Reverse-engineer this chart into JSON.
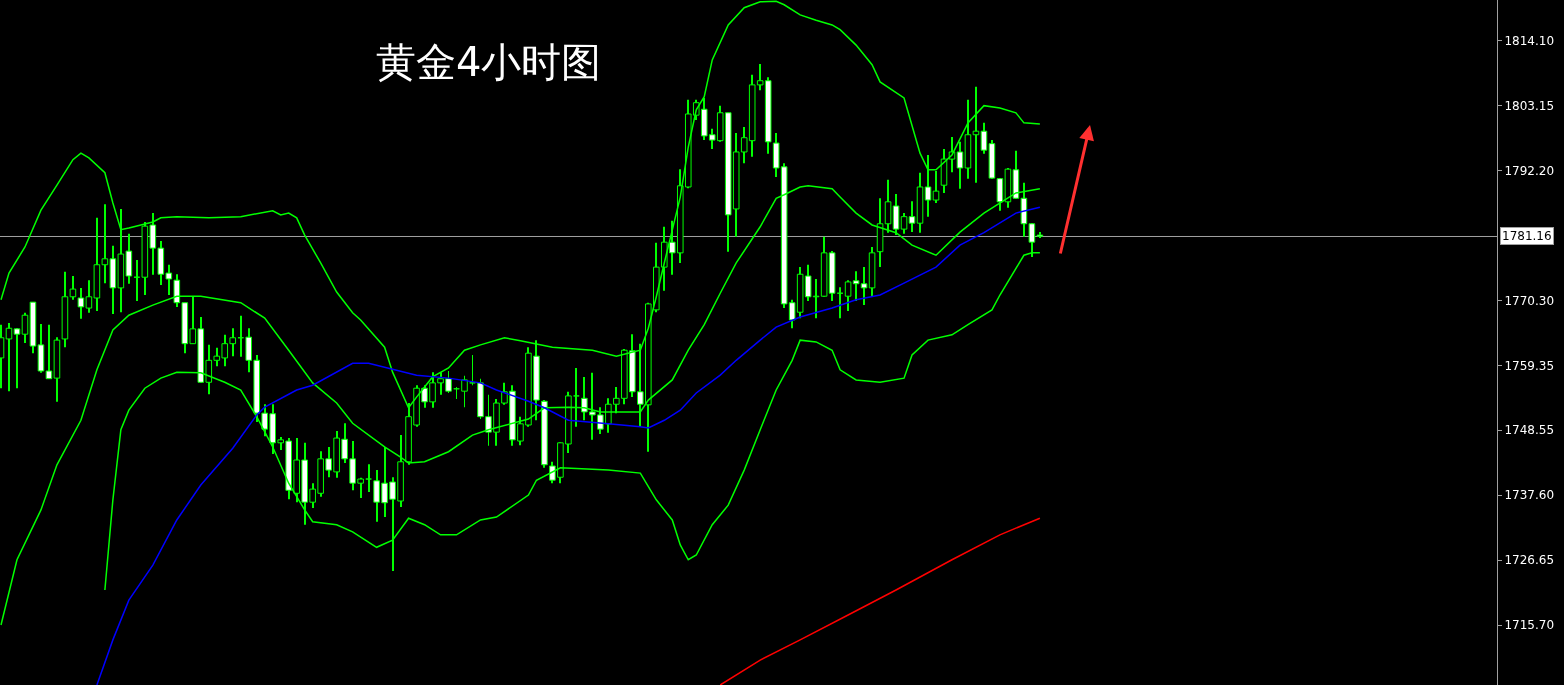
{
  "chart_data": {
    "type": "candlestick",
    "title": "黄金4小时图",
    "categories": [
      null,
      null,
      null,
      null,
      null,
      null,
      null,
      null,
      null,
      null,
      null,
      null,
      null,
      null,
      null,
      null,
      null,
      null,
      null,
      null,
      null,
      null,
      null,
      null,
      null,
      null,
      null,
      null,
      null,
      null,
      null,
      null,
      null,
      null,
      null,
      null,
      null,
      null,
      null,
      null,
      null,
      null,
      null,
      null,
      null,
      null,
      null,
      null,
      null,
      null,
      null,
      null,
      null,
      null,
      null,
      null,
      null,
      null,
      null,
      null,
      null,
      null,
      null,
      null,
      null,
      null,
      null,
      null,
      null,
      null,
      null,
      null,
      null,
      null,
      null,
      null,
      null,
      null,
      null,
      null,
      null,
      null,
      null,
      null,
      null,
      null,
      null,
      null,
      null,
      null,
      null,
      null,
      null,
      null,
      null,
      null,
      null,
      null,
      null,
      null,
      null,
      null,
      null,
      null,
      null,
      null,
      null,
      null,
      null,
      null,
      null,
      null,
      null,
      null,
      null,
      null,
      null,
      null,
      null,
      null,
      null,
      null,
      null,
      null,
      null,
      null,
      null,
      null,
      null,
      null,
      null
    ],
    "color": "#00ff00",
    "ohlc": [
      [
        1760.7,
        1766.3,
        1755.6,
        1764.1
      ],
      [
        1763.9,
        1766.6,
        1755.1,
        1765.7
      ],
      [
        1765.6,
        1765.7,
        1755.6,
        1764.7
      ],
      [
        1764.7,
        1768.3,
        1763.2,
        1767.9
      ],
      [
        1770.1,
        1770.1,
        1761.5,
        1762.7
      ],
      [
        1762.9,
        1766.4,
        1758.2,
        1758.5
      ],
      [
        1758.5,
        1766.3,
        1757.2,
        1757.2
      ],
      [
        1757.3,
        1764.2,
        1753.3,
        1763.7
      ],
      [
        1763.9,
        1775.2,
        1762.5,
        1771.0
      ],
      [
        1771.0,
        1774.5,
        1770.5,
        1772.3
      ],
      [
        1770.8,
        1772.5,
        1767.3,
        1769.3
      ],
      [
        1769.1,
        1773.8,
        1768.3,
        1771.0
      ],
      [
        1770.8,
        1784.3,
        1768.6,
        1776.4
      ],
      [
        1776.4,
        1786.6,
        1773.3,
        1777.4
      ],
      [
        1777.4,
        1779.6,
        1768.1,
        1772.5
      ],
      [
        1772.5,
        1785.8,
        1768.4,
        1778.2
      ],
      [
        1778.7,
        1781.6,
        1773.2,
        1774.5
      ],
      [
        1774.3,
        1777.2,
        1770.3,
        1774.3
      ],
      [
        1774.3,
        1783.6,
        1771.3,
        1782.9
      ],
      [
        1783.1,
        1785.1,
        1774.7,
        1779.2
      ],
      [
        1779.2,
        1780.4,
        1773.0,
        1774.8
      ],
      [
        1775.0,
        1776.4,
        1771.3,
        1774.0
      ],
      [
        1773.8,
        1774.8,
        1769.3,
        1770.0
      ],
      [
        1770.0,
        1770.0,
        1761.5,
        1763.1
      ],
      [
        1763.1,
        1771.0,
        1763.1,
        1765.6
      ],
      [
        1765.6,
        1767.6,
        1756.5,
        1756.6
      ],
      [
        1756.6,
        1762.9,
        1754.6,
        1760.3
      ],
      [
        1760.3,
        1762.4,
        1759.3,
        1761.0
      ],
      [
        1760.7,
        1764.6,
        1759.3,
        1763.1
      ],
      [
        1763.1,
        1765.7,
        1761.0,
        1764.1
      ],
      [
        1764.1,
        1767.8,
        1760.9,
        1764.1
      ],
      [
        1764.2,
        1765.7,
        1758.3,
        1760.3
      ],
      [
        1760.3,
        1761.2,
        1749.9,
        1751.4
      ],
      [
        1751.4,
        1752.9,
        1747.5,
        1748.7
      ],
      [
        1751.3,
        1752.9,
        1744.5,
        1746.4
      ],
      [
        1746.4,
        1747.4,
        1745.2,
        1746.9
      ],
      [
        1746.7,
        1747.2,
        1736.9,
        1738.4
      ],
      [
        1737.9,
        1747.2,
        1736.4,
        1743.5
      ],
      [
        1743.5,
        1746.4,
        1732.6,
        1736.4
      ],
      [
        1736.4,
        1739.6,
        1735.4,
        1738.6
      ],
      [
        1737.9,
        1745.0,
        1737.3,
        1743.7
      ],
      [
        1743.7,
        1745.7,
        1740.6,
        1741.8
      ],
      [
        1741.5,
        1748.4,
        1740.5,
        1747.2
      ],
      [
        1747.0,
        1749.7,
        1743.0,
        1743.7
      ],
      [
        1743.7,
        1746.7,
        1738.4,
        1739.6
      ],
      [
        1739.6,
        1740.5,
        1737.1,
        1740.3
      ],
      [
        1740.3,
        1742.8,
        1738.1,
        1740.3
      ],
      [
        1740.0,
        1741.8,
        1733.1,
        1736.4
      ],
      [
        1739.6,
        1745.7,
        1733.9,
        1736.3
      ],
      [
        1739.8,
        1740.6,
        1724.8,
        1736.9
      ],
      [
        1736.6,
        1747.7,
        1735.6,
        1743.2
      ],
      [
        1743.2,
        1753.1,
        1742.7,
        1750.8
      ],
      [
        1749.4,
        1756.1,
        1749.1,
        1755.6
      ],
      [
        1755.6,
        1756.1,
        1752.3,
        1753.3
      ],
      [
        1753.3,
        1758.3,
        1752.3,
        1756.5
      ],
      [
        1756.5,
        1758.3,
        1754.5,
        1757.2
      ],
      [
        1757.2,
        1758.5,
        1754.8,
        1755.1
      ],
      [
        1755.5,
        1755.8,
        1753.8,
        1755.5
      ],
      [
        1755.1,
        1757.7,
        1752.4,
        1757.0
      ],
      [
        1756.5,
        1761.2,
        1756.1,
        1756.5
      ],
      [
        1756.5,
        1757.2,
        1750.4,
        1750.8
      ],
      [
        1750.8,
        1754.5,
        1745.9,
        1748.2
      ],
      [
        1748.2,
        1753.8,
        1745.9,
        1753.1
      ],
      [
        1753.1,
        1756.5,
        1752.8,
        1755.0
      ],
      [
        1755.1,
        1756.1,
        1745.9,
        1746.9
      ],
      [
        1746.7,
        1750.8,
        1746.0,
        1749.6
      ],
      [
        1749.4,
        1762.5,
        1749.1,
        1761.5
      ],
      [
        1761.0,
        1763.7,
        1750.2,
        1753.6
      ],
      [
        1753.4,
        1753.6,
        1742.2,
        1742.7
      ],
      [
        1742.5,
        1743.2,
        1739.6,
        1740.1
      ],
      [
        1740.6,
        1746.5,
        1739.6,
        1746.4
      ],
      [
        1746.2,
        1755.0,
        1744.7,
        1754.3
      ],
      [
        1754.3,
        1759.0,
        1749.1,
        1754.3
      ],
      [
        1753.9,
        1757.5,
        1750.2,
        1751.6
      ],
      [
        1751.6,
        1758.2,
        1746.9,
        1751.1
      ],
      [
        1751.1,
        1752.4,
        1747.9,
        1748.7
      ],
      [
        1749.6,
        1753.9,
        1748.1,
        1752.9
      ],
      [
        1752.9,
        1755.8,
        1751.4,
        1753.9
      ],
      [
        1753.9,
        1762.2,
        1752.9,
        1762.0
      ],
      [
        1761.9,
        1764.7,
        1754.1,
        1755.0
      ],
      [
        1755.0,
        1763.1,
        1749.1,
        1752.9
      ],
      [
        1752.8,
        1770.0,
        1744.9,
        1769.8
      ],
      [
        1768.8,
        1780.1,
        1768.4,
        1776.0
      ],
      [
        1776.0,
        1782.8,
        1772.0,
        1780.2
      ],
      [
        1780.2,
        1783.8,
        1774.7,
        1778.4
      ],
      [
        1778.4,
        1792.5,
        1776.7,
        1789.7
      ],
      [
        1789.5,
        1804.2,
        1789.3,
        1801.8
      ],
      [
        1801.6,
        1804.2,
        1800.8,
        1803.7
      ],
      [
        1802.6,
        1804.5,
        1797.4,
        1798.1
      ],
      [
        1798.3,
        1799.3,
        1795.9,
        1797.4
      ],
      [
        1797.3,
        1803.2,
        1797.1,
        1802.0
      ],
      [
        1802.0,
        1802.0,
        1778.6,
        1784.8
      ],
      [
        1785.8,
        1798.6,
        1781.1,
        1795.4
      ],
      [
        1795.4,
        1799.6,
        1793.5,
        1797.8
      ],
      [
        1797.3,
        1808.4,
        1794.6,
        1806.7
      ],
      [
        1806.7,
        1810.2,
        1805.8,
        1807.4
      ],
      [
        1807.4,
        1808.0,
        1795.1,
        1797.1
      ],
      [
        1796.9,
        1798.6,
        1791.2,
        1792.7
      ],
      [
        1792.9,
        1793.5,
        1769.1,
        1769.8
      ],
      [
        1770.0,
        1770.5,
        1765.7,
        1767.1
      ],
      [
        1768.4,
        1776.0,
        1767.4,
        1774.8
      ],
      [
        1774.5,
        1776.4,
        1770.3,
        1771.0
      ],
      [
        1771.0,
        1774.0,
        1767.4,
        1771.1
      ],
      [
        1771.1,
        1781.1,
        1771.0,
        1778.4
      ],
      [
        1778.4,
        1778.7,
        1770.3,
        1771.6
      ],
      [
        1771.6,
        1772.6,
        1767.4,
        1771.6
      ],
      [
        1771.1,
        1773.8,
        1768.6,
        1773.5
      ],
      [
        1773.7,
        1775.3,
        1770.3,
        1773.2
      ],
      [
        1773.2,
        1776.0,
        1769.6,
        1772.5
      ],
      [
        1772.5,
        1779.4,
        1771.0,
        1778.4
      ],
      [
        1778.6,
        1787.6,
        1776.0,
        1783.3
      ],
      [
        1783.3,
        1790.7,
        1781.8,
        1787.0
      ],
      [
        1786.3,
        1788.3,
        1781.4,
        1782.4
      ],
      [
        1782.4,
        1785.1,
        1781.6,
        1784.5
      ],
      [
        1784.5,
        1787.1,
        1781.9,
        1783.4
      ],
      [
        1783.4,
        1791.9,
        1781.8,
        1789.5
      ],
      [
        1789.5,
        1794.9,
        1784.5,
        1787.3
      ],
      [
        1787.3,
        1792.2,
        1786.8,
        1788.8
      ],
      [
        1789.8,
        1795.9,
        1788.5,
        1794.2
      ],
      [
        1794.2,
        1797.9,
        1792.0,
        1795.4
      ],
      [
        1795.4,
        1797.1,
        1789.2,
        1792.7
      ],
      [
        1792.7,
        1804.2,
        1790.9,
        1798.3
      ],
      [
        1798.3,
        1806.4,
        1790.2,
        1798.9
      ],
      [
        1798.9,
        1800.3,
        1795.1,
        1795.7
      ],
      [
        1796.8,
        1797.4,
        1790.9,
        1791.0
      ],
      [
        1790.9,
        1791.0,
        1785.5,
        1787.0
      ],
      [
        1787.0,
        1792.7,
        1786.0,
        1792.5
      ],
      [
        1792.4,
        1795.6,
        1787.5,
        1787.6
      ],
      [
        1787.6,
        1790.2,
        1781.1,
        1783.3
      ],
      [
        1783.3,
        1783.4,
        1777.7,
        1780.2
      ],
      [
        1781.4,
        1781.9,
        1780.9,
        1781.2
      ]
    ],
    "series": [
      {
        "type": "line",
        "color": "#00ff00",
        "values": [
          1770.5,
          1775.0,
          null,
          1779.4,
          null,
          1785.6,
          null,
          1789.8,
          null,
          1794.1,
          1795.2,
          1794.4,
          null,
          1791.9,
          1786.8,
          1782.3,
          1782.6,
          null,
          null,
          1783.6,
          1784.3,
          null,
          1784.5,
          null,
          null,
          null,
          1784.3,
          null,
          null,
          null,
          1784.5,
          null,
          null,
          null,
          1785.5,
          1784.8,
          1785.1,
          1784.3,
          1781.4,
          null,
          1776.7,
          null,
          1771.8,
          null,
          1768.3,
          1767.1,
          null,
          null,
          1762.5,
          1758.3,
          null,
          1752.3,
          1754.1,
          null,
          1757.5,
          null,
          1759.0,
          null,
          1762.0,
          null,
          1762.9,
          null,
          null,
          1764.1,
          null,
          1763.6,
          null,
          null,
          null,
          1762.5,
          null,
          null,
          null,
          null,
          1762.0,
          null,
          null,
          1761.0,
          null,
          null,
          1762.0,
          1765.7,
          1771.0,
          1776.7,
          null,
          1787.8,
          1796.2,
          1802.5,
          1804.7,
          1810.9,
          null,
          1816.8,
          null,
          1819.7,
          null,
          1820.7,
          null,
          1820.8,
          1820.2,
          null,
          1818.5,
          null,
          1817.6,
          null,
          1816.8,
          1816.0,
          null,
          1813.4,
          null,
          1810.1,
          1807.2,
          null,
          null,
          1804.5,
          null,
          1795.2,
          1792.4,
          1792.4,
          null,
          1794.9,
          null,
          1800.3,
          null,
          1803.2,
          null,
          1802.8,
          null,
          1802.0,
          1800.3,
          null,
          1800.1
        ]
      },
      {
        "type": "line",
        "color": "#00ff00",
        "values": [
          1715.7,
          null,
          1726.7,
          null,
          null,
          1735.1,
          null,
          1742.7,
          null,
          null,
          1750.2,
          null,
          1758.7,
          null,
          1765.4,
          null,
          1767.9,
          null,
          null,
          1769.6,
          null,
          null,
          1771.1,
          null,
          null,
          1771.1,
          null,
          null,
          null,
          null,
          1770.0,
          null,
          null,
          1767.4,
          null,
          null,
          1762.0,
          null,
          null,
          1756.5,
          null,
          null,
          1753.1,
          null,
          1749.7,
          null,
          null,
          null,
          1745.7,
          null,
          1744.0,
          1743.0,
          null,
          1743.2,
          null,
          null,
          1744.9,
          null,
          null,
          1747.7,
          null,
          1748.6,
          null,
          null,
          null,
          null,
          1750.4,
          null,
          1752.3,
          null,
          null,
          1752.4,
          null,
          1752.3,
          null,
          1751.6,
          null,
          null,
          null,
          null,
          1751.6,
          1753.6,
          null,
          null,
          1757.0,
          null,
          1762.0,
          null,
          1766.3,
          null,
          1771.6,
          null,
          1776.7,
          null,
          null,
          1782.8,
          null,
          1787.6,
          1788.2,
          null,
          1789.5,
          1789.7,
          null,
          null,
          1789.2,
          1787.8,
          null,
          1785.1,
          null,
          1783.1,
          null,
          null,
          1781.8,
          null,
          1779.7,
          null,
          null,
          1778.0,
          null,
          null,
          1781.9,
          null,
          null,
          1785.1,
          null,
          null,
          null,
          1788.5,
          null,
          null,
          1789.2
        ]
      },
      {
        "type": "line",
        "color": "#00ff00",
        "values": [
          null,
          null,
          null,
          null,
          null,
          null,
          null,
          null,
          null,
          null,
          null,
          null,
          null,
          1721.6,
          1736.8,
          1748.6,
          1751.9,
          null,
          1755.6,
          null,
          1757.3,
          null,
          1758.3,
          null,
          null,
          1758.2,
          null,
          null,
          1756.6,
          null,
          1755.3,
          null,
          1750.8,
          null,
          1745.7,
          null,
          1739.6,
          null,
          1735.1,
          1733.1,
          null,
          null,
          1732.6,
          null,
          1731.4,
          null,
          null,
          1728.8,
          null,
          1730.0,
          null,
          1733.7,
          null,
          1732.6,
          null,
          1730.9,
          null,
          1730.9,
          null,
          null,
          1733.4,
          null,
          1733.9,
          null,
          null,
          null,
          1737.6,
          1740.1,
          null,
          null,
          1742.2,
          null,
          null,
          null,
          null,
          null,
          1741.8,
          null,
          null,
          null,
          1741.3,
          null,
          1736.8,
          null,
          1733.4,
          1729.2,
          1726.7,
          1727.5,
          null,
          1732.6,
          null,
          1735.9,
          null,
          1741.8,
          null,
          1748.6,
          null,
          1755.3,
          null,
          1760.3,
          1763.7,
          null,
          1763.4,
          null,
          1762.0,
          1758.7,
          null,
          1757.0,
          null,
          null,
          1756.6,
          null,
          null,
          1757.3,
          1761.2,
          null,
          1763.7,
          null,
          null,
          1764.6,
          null,
          1766.3,
          null,
          null,
          1768.8,
          1771.3,
          null,
          null,
          1778.0,
          1778.4,
          1778.4
        ]
      },
      {
        "type": "line",
        "color": "#0000ff",
        "values": [
          null,
          null,
          null,
          null,
          null,
          null,
          null,
          null,
          null,
          null,
          null,
          null,
          1705.6,
          null,
          1713.2,
          null,
          1719.9,
          null,
          null,
          1725.8,
          null,
          null,
          1733.4,
          null,
          null,
          1739.3,
          null,
          null,
          null,
          1745.5,
          null,
          null,
          1751.1,
          1752.4,
          null,
          null,
          null,
          1755.3,
          null,
          1756.1,
          null,
          null,
          null,
          null,
          1759.8,
          null,
          1759.8,
          null,
          null,
          1758.8,
          null,
          null,
          1757.8,
          null,
          null,
          null,
          1757.3,
          null,
          null,
          null,
          1756.5,
          null,
          1755.3,
          null,
          null,
          null,
          1753.4,
          null,
          1752.3,
          null,
          null,
          1750.2,
          null,
          null,
          null,
          null,
          1749.6,
          null,
          null,
          null,
          1749.1,
          1748.9,
          null,
          1750.2,
          null,
          1751.9,
          null,
          1754.8,
          null,
          null,
          1757.8,
          null,
          1760.3,
          null,
          null,
          1763.7,
          null,
          1765.9,
          null,
          null,
          1767.6,
          null,
          null,
          null,
          1769.1,
          null,
          null,
          1770.5,
          null,
          null,
          1771.3,
          null,
          null,
          1773.3,
          null,
          null,
          null,
          1776.0,
          null,
          null,
          1779.7,
          null,
          null,
          1781.8,
          null,
          null,
          null,
          1785.1,
          null,
          null,
          1786.1
        ]
      },
      {
        "type": "line",
        "color": "#ff0000",
        "values": [
          null,
          null,
          null,
          null,
          null,
          null,
          null,
          null,
          null,
          null,
          null,
          null,
          null,
          null,
          null,
          null,
          null,
          null,
          null,
          null,
          null,
          null,
          null,
          null,
          null,
          null,
          null,
          null,
          null,
          null,
          null,
          null,
          null,
          null,
          null,
          null,
          null,
          null,
          null,
          null,
          null,
          null,
          null,
          null,
          null,
          null,
          null,
          null,
          null,
          null,
          null,
          null,
          null,
          null,
          null,
          null,
          null,
          null,
          null,
          null,
          null,
          null,
          null,
          null,
          null,
          null,
          null,
          null,
          null,
          null,
          null,
          null,
          null,
          null,
          null,
          null,
          null,
          null,
          null,
          null,
          null,
          null,
          null,
          null,
          null,
          null,
          null,
          null,
          null,
          null,
          1705.6,
          null,
          null,
          null,
          null,
          1709.8,
          null,
          null,
          null,
          null,
          1713.2,
          null,
          null,
          null,
          null,
          null,
          1717.4,
          null,
          null,
          null,
          null,
          null,
          1721.6,
          null,
          null,
          null,
          null,
          null,
          null,
          1726.7,
          null,
          null,
          null,
          null,
          null,
          1730.9,
          null,
          null,
          null,
          null,
          1733.7
        ]
      }
    ],
    "ylim": [
      1705.6,
      1821.0
    ],
    "yticks": [
      {
        "value": 1814.1,
        "label": "1814.10"
      },
      {
        "value": 1803.15,
        "label": "1803.15"
      },
      {
        "value": 1792.2,
        "label": "1792.20"
      },
      {
        "value": 1770.3,
        "label": "1770.30"
      },
      {
        "value": 1759.35,
        "label": "1759.35"
      },
      {
        "value": 1748.55,
        "label": "1748.55"
      },
      {
        "value": 1737.6,
        "label": "1737.60"
      },
      {
        "value": 1726.65,
        "label": "1726.65"
      },
      {
        "value": 1715.7,
        "label": "1715.70"
      }
    ],
    "ref_lines": [
      {
        "axis": "y",
        "value": 1781.16,
        "label": "1781.16",
        "color": "#a0a0a0"
      }
    ],
    "tick_labels": "y"
  }
}
